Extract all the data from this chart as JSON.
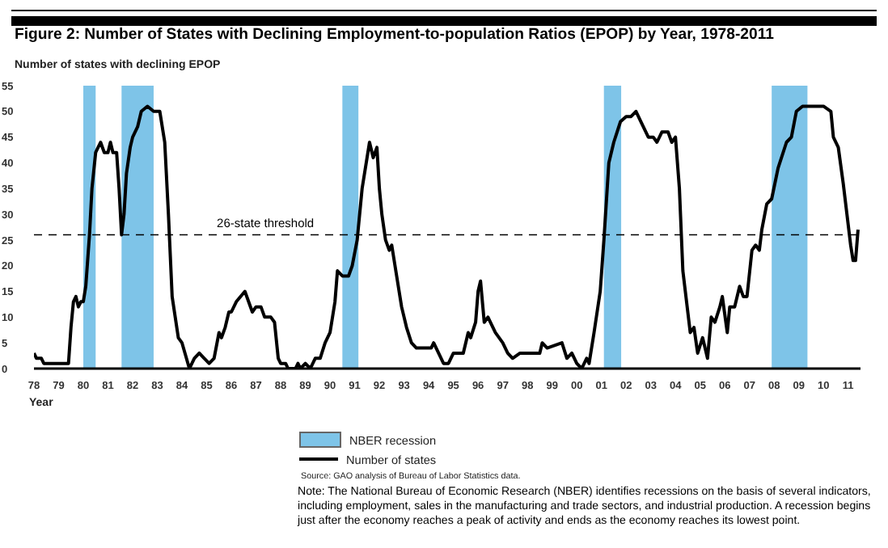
{
  "chart_data": {
    "type": "line",
    "title": "Figure 2: Number of States with Declining Employment-to-population Ratios (EPOP) by Year, 1978-2011",
    "ylabel": "Number of states with declining EPOP",
    "xlabel": "Year",
    "x": [
      1978.0,
      1978.1,
      1978.3,
      1978.4,
      1979.4,
      1979.5,
      1979.6,
      1979.7,
      1979.8,
      1979.9,
      1980.0,
      1980.1,
      1980.25,
      1980.35,
      1980.5,
      1980.7,
      1980.85,
      1981.0,
      1981.1,
      1981.2,
      1981.35,
      1981.45,
      1981.55,
      1981.65,
      1981.75,
      1981.9,
      1982.0,
      1982.2,
      1982.35,
      1982.6,
      1982.85,
      1983.1,
      1983.3,
      1983.45,
      1983.6,
      1983.85,
      1984.0,
      1984.3,
      1984.5,
      1984.7,
      1984.9,
      1985.1,
      1985.3,
      1985.5,
      1985.6,
      1985.75,
      1985.9,
      1986.0,
      1986.2,
      1986.55,
      1986.7,
      1986.85,
      1987.0,
      1987.2,
      1987.35,
      1987.6,
      1987.75,
      1987.9,
      1988.0,
      1988.2,
      1988.3,
      1988.6,
      1988.7,
      1988.8,
      1989.0,
      1989.2,
      1989.4,
      1989.6,
      1989.8,
      1990.0,
      1990.2,
      1990.3,
      1990.5,
      1990.75,
      1990.9,
      1991.1,
      1991.3,
      1991.5,
      1991.6,
      1991.75,
      1991.9,
      1992.0,
      1992.1,
      1992.25,
      1992.4,
      1992.5,
      1992.7,
      1992.9,
      1993.1,
      1993.3,
      1993.5,
      1993.9,
      1994.1,
      1994.2,
      1994.4,
      1994.6,
      1994.8,
      1995.0,
      1995.4,
      1995.6,
      1995.7,
      1995.9,
      1996.0,
      1996.1,
      1996.25,
      1996.4,
      1996.7,
      1997.0,
      1997.2,
      1997.4,
      1997.7,
      1998.5,
      1998.6,
      1998.8,
      1999.4,
      1999.6,
      1999.8,
      2000.0,
      2000.2,
      2000.4,
      2000.5,
      2000.7,
      2000.95,
      2001.1,
      2001.3,
      2001.5,
      2001.77,
      2002.0,
      2002.2,
      2002.4,
      2002.6,
      2002.9,
      2003.1,
      2003.25,
      2003.45,
      2003.7,
      2003.85,
      2004.0,
      2004.16,
      2004.3,
      2004.6,
      2004.75,
      2004.9,
      2005.1,
      2005.3,
      2005.45,
      2005.6,
      2005.8,
      2005.9,
      2006.1,
      2006.2,
      2006.4,
      2006.6,
      2006.75,
      2006.9,
      2007.1,
      2007.25,
      2007.4,
      2007.5,
      2007.7,
      2007.9,
      2008.16,
      2008.5,
      2008.7,
      2008.9,
      2009.15,
      2010.0,
      2010.3,
      2010.4,
      2010.6,
      2010.8,
      2010.95,
      2011.1,
      2011.2,
      2011.3,
      2011.4
    ],
    "series": [
      {
        "name": "Number of states",
        "color": "#000000",
        "values": [
          3,
          2,
          2,
          1,
          1,
          8,
          13,
          14,
          12,
          13,
          13,
          16,
          26,
          35,
          42,
          44,
          42,
          42,
          44,
          42,
          42,
          35,
          26,
          30,
          38,
          43,
          45,
          47,
          50,
          51,
          50,
          50,
          44,
          30,
          14,
          6,
          5,
          0,
          2,
          3,
          2,
          1,
          2,
          7,
          6,
          8,
          11,
          11,
          13,
          15,
          13,
          11,
          12,
          12,
          10,
          10,
          9,
          2,
          1,
          1,
          0,
          0,
          1,
          0,
          1,
          0,
          2,
          2,
          5,
          7,
          13,
          19,
          18,
          18,
          20,
          25,
          35,
          41,
          44,
          41,
          43,
          35,
          30,
          25,
          23,
          24,
          18,
          12,
          8,
          5,
          4,
          4,
          4,
          5,
          3,
          1,
          1,
          3,
          3,
          7,
          6,
          9,
          15,
          17,
          9,
          10,
          7,
          5,
          3,
          2,
          3,
          3,
          5,
          4,
          5,
          2,
          3,
          1,
          0,
          2,
          1,
          7,
          15,
          25,
          40,
          44,
          48,
          49,
          49,
          50,
          48,
          45,
          45,
          44,
          46,
          46,
          44,
          45,
          35,
          19,
          7,
          8,
          3,
          6,
          2,
          10,
          9,
          12,
          14,
          7,
          12,
          12,
          16,
          14,
          14,
          23,
          24,
          23,
          27,
          32,
          33,
          39,
          44,
          45,
          50,
          51,
          51,
          50,
          45,
          43,
          36,
          30,
          24,
          21,
          21,
          27
        ]
      }
    ],
    "xlim": [
      1978,
      2011.5
    ],
    "xticks": [
      {
        "value": 1978,
        "label": "78"
      },
      {
        "value": 1979,
        "label": "79"
      },
      {
        "value": 1980,
        "label": "80"
      },
      {
        "value": 1981,
        "label": "81"
      },
      {
        "value": 1982,
        "label": "82"
      },
      {
        "value": 1983,
        "label": "83"
      },
      {
        "value": 1984,
        "label": "84"
      },
      {
        "value": 1985,
        "label": "85"
      },
      {
        "value": 1986,
        "label": "86"
      },
      {
        "value": 1987,
        "label": "87"
      },
      {
        "value": 1988,
        "label": "88"
      },
      {
        "value": 1989,
        "label": "89"
      },
      {
        "value": 1990,
        "label": "90"
      },
      {
        "value": 1991,
        "label": "91"
      },
      {
        "value": 1992,
        "label": "92"
      },
      {
        "value": 1993,
        "label": "93"
      },
      {
        "value": 1994,
        "label": "94"
      },
      {
        "value": 1995,
        "label": "95"
      },
      {
        "value": 1996,
        "label": "96"
      },
      {
        "value": 1997,
        "label": "97"
      },
      {
        "value": 1998,
        "label": "98"
      },
      {
        "value": 1999,
        "label": "99"
      },
      {
        "value": 2000,
        "label": "00"
      },
      {
        "value": 2001,
        "label": "01"
      },
      {
        "value": 2002,
        "label": "02"
      },
      {
        "value": 2003,
        "label": "03"
      },
      {
        "value": 2004,
        "label": "04"
      },
      {
        "value": 2005,
        "label": "05"
      },
      {
        "value": 2006,
        "label": "06"
      },
      {
        "value": 2007,
        "label": "07"
      },
      {
        "value": 2008,
        "label": "08"
      },
      {
        "value": 2009,
        "label": "09"
      },
      {
        "value": 2010,
        "label": "10"
      },
      {
        "value": 2011,
        "label": "11"
      }
    ],
    "ylim": [
      0,
      55
    ],
    "yticks": [
      0,
      5,
      10,
      15,
      20,
      25,
      30,
      35,
      40,
      45,
      50,
      55
    ],
    "ref_lines": [
      {
        "axis": "y",
        "value": 26,
        "label": "26-state threshold",
        "color": "#000000",
        "line_style": "dashed"
      }
    ],
    "bands": [
      {
        "axis": "x",
        "from": 1980.0,
        "to": 1980.5,
        "label": "NBER recession",
        "color": "#7ec4e8"
      },
      {
        "axis": "x",
        "from": 1981.55,
        "to": 1982.85,
        "color": "#7ec4e8"
      },
      {
        "axis": "x",
        "from": 1990.5,
        "to": 1991.15,
        "color": "#7ec4e8"
      },
      {
        "axis": "x",
        "from": 2001.1,
        "to": 2001.8,
        "color": "#7ec4e8"
      },
      {
        "axis": "x",
        "from": 2007.9,
        "to": 2009.35,
        "color": "#7ec4e8"
      }
    ],
    "grid": false,
    "legend": "bottom",
    "marker": "none",
    "line_style": "solid",
    "annotations": [
      "Source: GAO analysis of Bureau of Labor Statistics data.",
      "Note: The National Bureau of Economic Research (NBER) identifies recessions on the basis of several indicators, including employment, sales in the manufacturing and trade sectors, and industrial production. A recession begins just after the economy reaches a peak of activity and ends as the economy reaches its lowest point."
    ]
  }
}
